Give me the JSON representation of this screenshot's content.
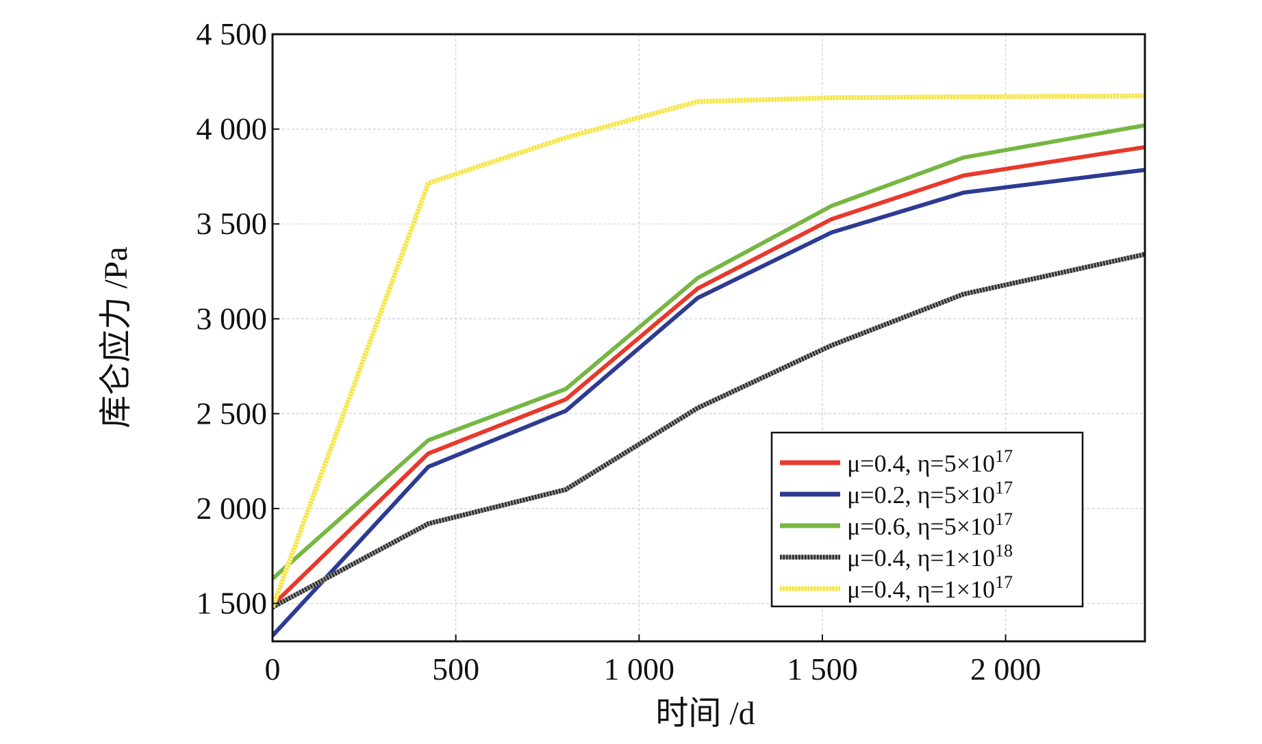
{
  "chart_data": {
    "type": "line",
    "title": "",
    "xlabel": "时间 /d",
    "ylabel": "库仑应力 /Pa",
    "xlim": [
      0,
      2380
    ],
    "ylim": [
      1300,
      4500
    ],
    "x_ticks": [
      0,
      500,
      1000,
      1500,
      2000
    ],
    "x_tick_labels": [
      "0",
      "500",
      "1 000",
      "1 500",
      "2 000"
    ],
    "y_ticks": [
      1500,
      2000,
      2500,
      3000,
      3500,
      4000,
      4500
    ],
    "y_tick_labels": [
      "1 500",
      "2 000",
      "2 500",
      "3 000",
      "3 500",
      "4 000",
      "4 500"
    ],
    "grid": true,
    "legend_position": "bottom-right",
    "x": [
      0,
      425,
      800,
      1160,
      1525,
      1885,
      2380
    ],
    "series": [
      {
        "name": "μ=0.4, η=5×10",
        "name_exp": "17",
        "color": "#e8392c",
        "style": "solid",
        "values": [
          1490,
          2290,
          2575,
          3160,
          3525,
          3755,
          3905
        ]
      },
      {
        "name": "μ=0.2, η=5×10",
        "name_exp": "17",
        "color": "#2e3b92",
        "style": "solid",
        "values": [
          1330,
          2220,
          2515,
          3110,
          3455,
          3665,
          3785
        ]
      },
      {
        "name": "μ=0.6, η=5×10",
        "name_exp": "17",
        "color": "#76b743",
        "style": "solid",
        "values": [
          1630,
          2360,
          2630,
          3215,
          3595,
          3850,
          4020
        ]
      },
      {
        "name": "μ=0.4, η=1×10",
        "name_exp": "18",
        "color": "#2a2a2a",
        "style": "dotted",
        "values": [
          1480,
          1920,
          2100,
          2530,
          2860,
          3130,
          3340
        ]
      },
      {
        "name": "μ=0.4, η=1×10",
        "name_exp": "17",
        "color": "#f4e43a",
        "style": "dotted",
        "values": [
          1480,
          3715,
          3955,
          4145,
          4165,
          4170,
          4175
        ]
      }
    ]
  }
}
